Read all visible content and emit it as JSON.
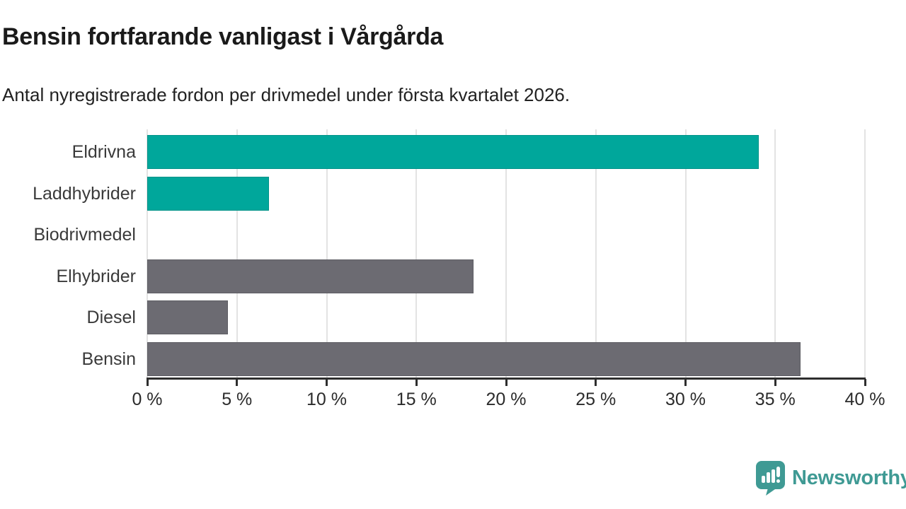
{
  "header": {
    "title": "Bensin fortfarande vanligast i Vårgårda",
    "subtitle": "Antal nyregistrerade fordon per drivmedel under första kvartalet 2026."
  },
  "chart_data": {
    "type": "bar",
    "orientation": "horizontal",
    "title": "Bensin fortfarande vanligast i Vårgårda",
    "subtitle": "Antal nyregistrerade fordon per drivmedel under första kvartalet 2026.",
    "xlabel": "",
    "ylabel": "",
    "unit": "%",
    "categories": [
      "Eldrivna",
      "Laddhybrider",
      "Biodrivmedel",
      "Elhybrider",
      "Diesel",
      "Bensin"
    ],
    "values": [
      34.1,
      6.8,
      0,
      18.2,
      4.5,
      36.4
    ],
    "bar_colors": [
      "#00a79b",
      "#00a79b",
      "#00a79b",
      "#6c6b72",
      "#6c6b72",
      "#6c6b72"
    ],
    "xlim": [
      0,
      40
    ],
    "x_ticks": [
      0,
      5,
      10,
      15,
      20,
      25,
      30,
      35,
      40
    ],
    "x_tick_labels": [
      "0 %",
      "5 %",
      "10 %",
      "15 %",
      "20 %",
      "25 %",
      "30 %",
      "35 %",
      "40 %"
    ],
    "grid": "vertical-gridlines-on",
    "legend": "none"
  },
  "branding": {
    "logo_text": "Newsworthy",
    "logo_color": "#3f9a94"
  },
  "colors": {
    "teal_bar": "#00a79b",
    "gray_bar": "#6c6b72",
    "axis": "#2e2e2e",
    "gridline": "#e3e3e3",
    "title_text": "#1a1a1a",
    "label_text": "#3a3a3a",
    "background": "#ffffff"
  }
}
